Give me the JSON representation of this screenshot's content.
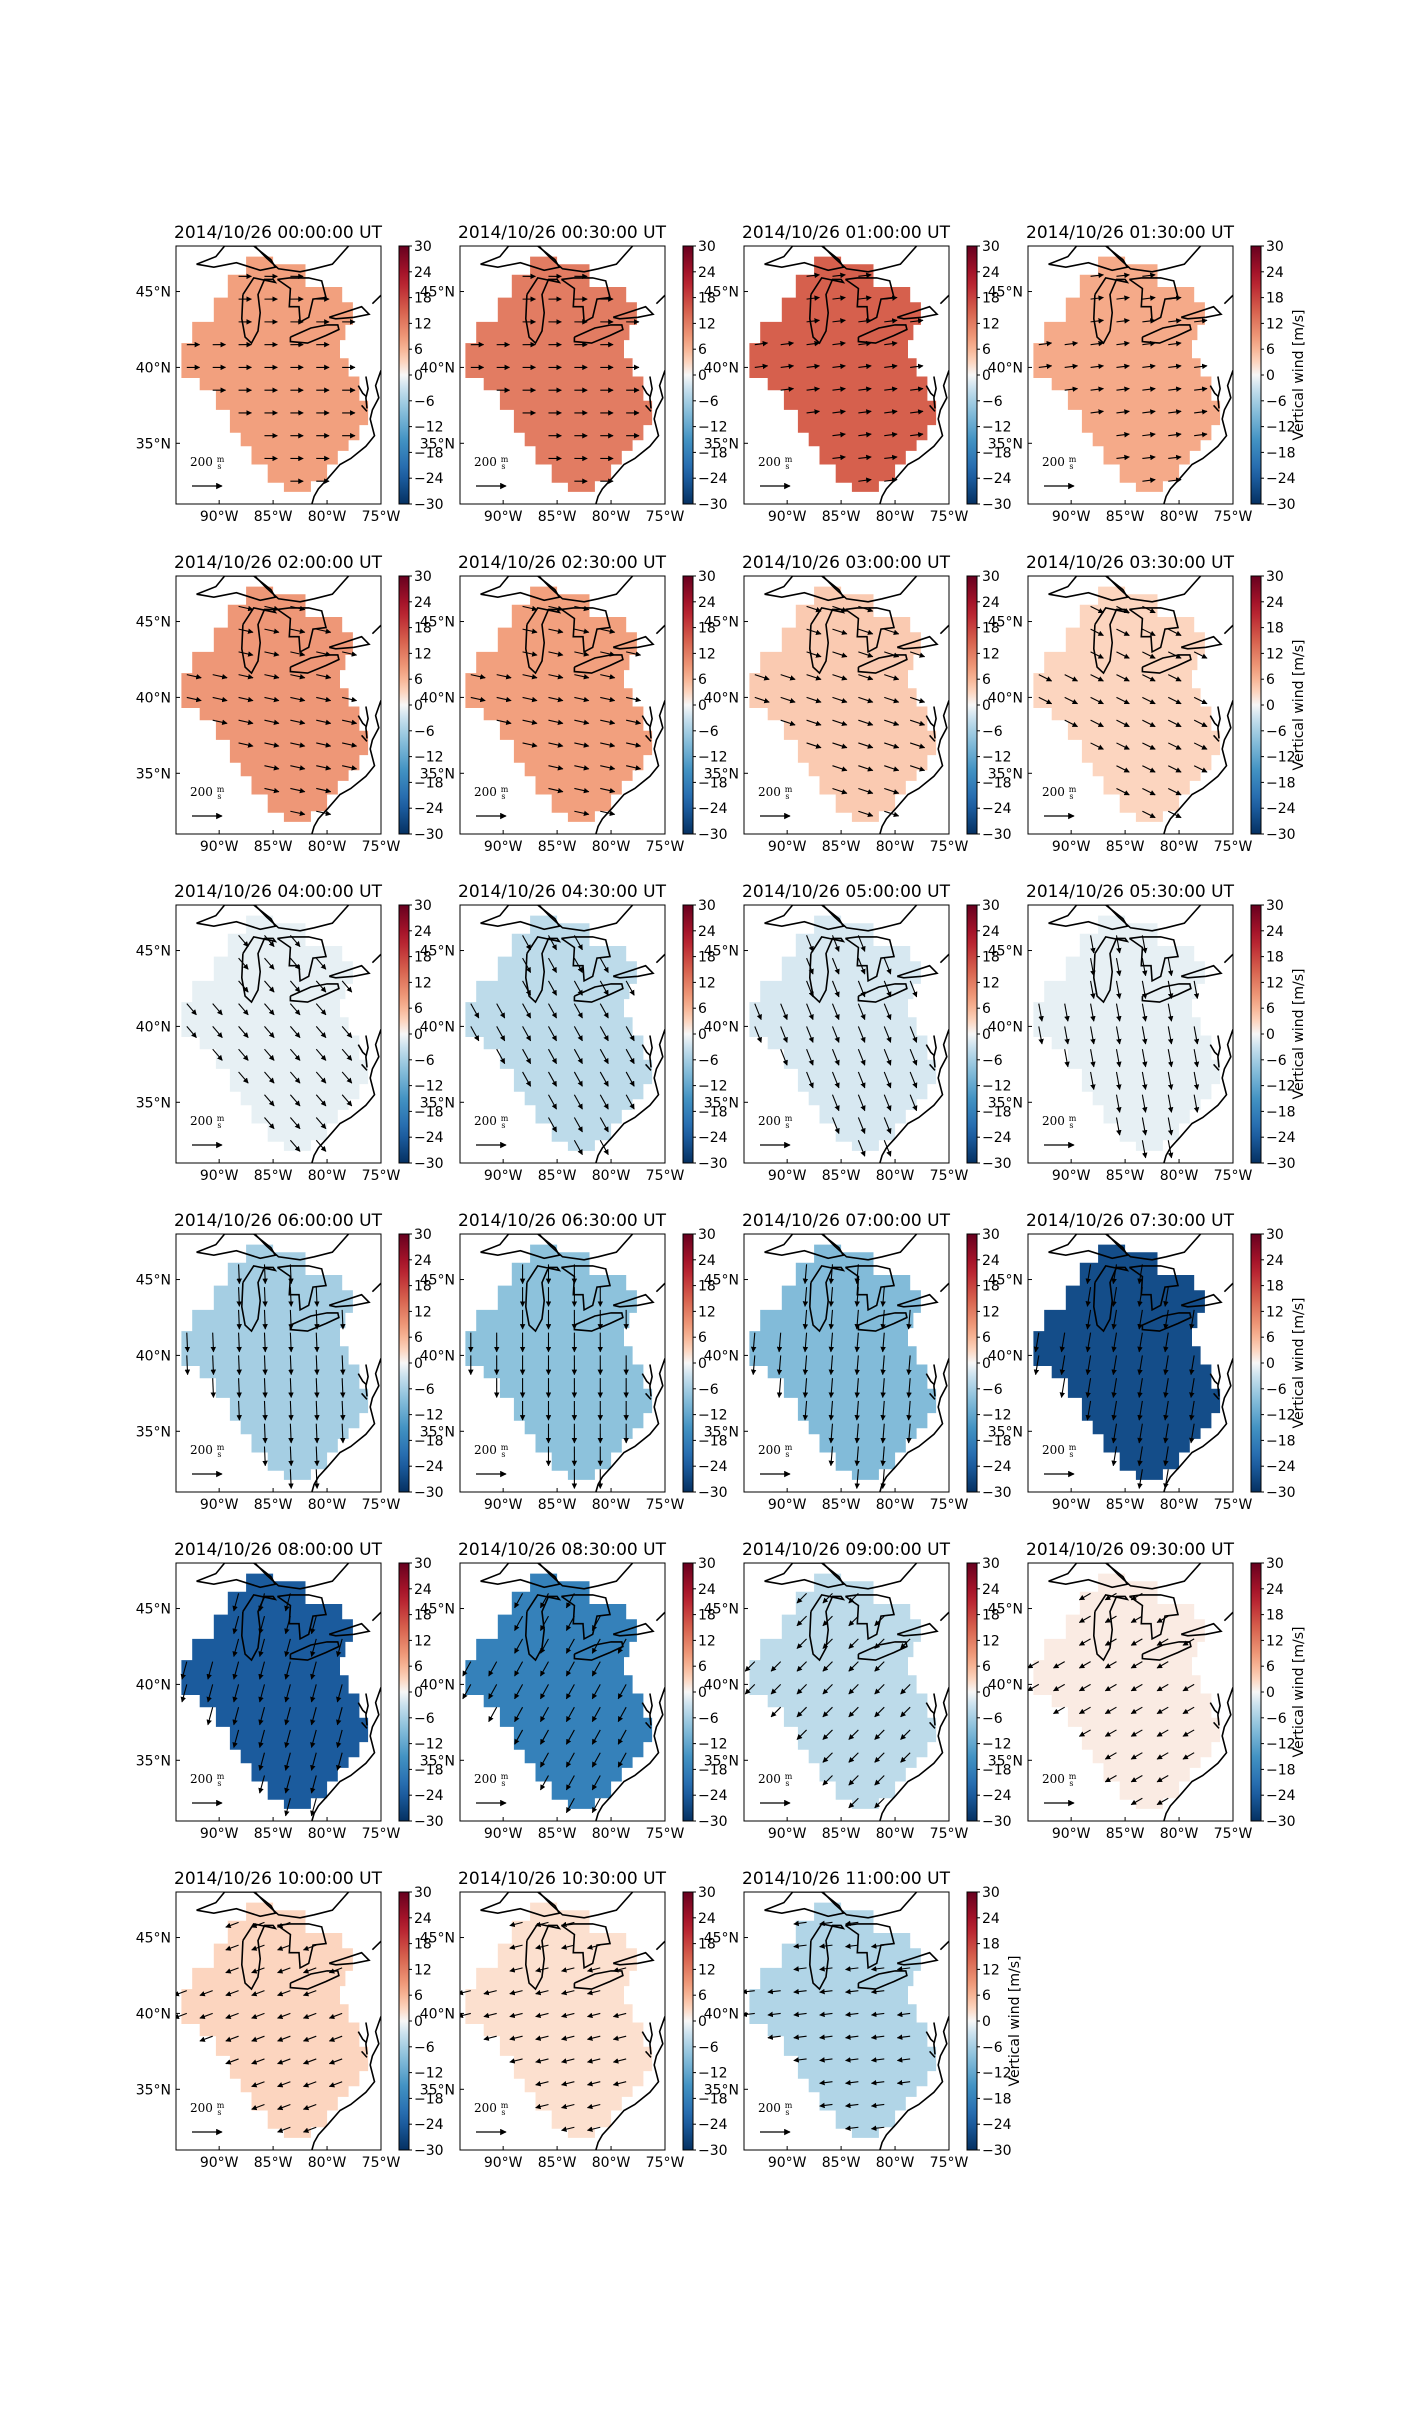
{
  "chart_data": {
    "type": "heatmap",
    "description_fields": {
      "map_extent_lon": [
        -94,
        -75
      ],
      "map_extent_lat": [
        31,
        48
      ],
      "projection": "cylindrical"
    },
    "colormap": "RdBu_r",
    "colorbar": {
      "range": [
        -30,
        30
      ],
      "ticks": [
        "30",
        "24",
        "18",
        "12",
        "6",
        "0",
        "−6",
        "−12",
        "−18",
        "−24",
        "−30"
      ],
      "label": "Vertical wind [m/s]",
      "label_on_panels": [
        3,
        7,
        11,
        15,
        19,
        22
      ]
    },
    "x_ticks": [
      {
        "lon": -90,
        "label": "90°W"
      },
      {
        "lon": -85,
        "label": "85°W"
      },
      {
        "lon": -80,
        "label": "80°W"
      },
      {
        "lon": -75,
        "label": "75°W"
      }
    ],
    "y_ticks": [
      {
        "lat": 45,
        "label": "45°N"
      },
      {
        "lat": 40,
        "label": "40°N"
      },
      {
        "lat": 35,
        "label": "35°N"
      }
    ],
    "reference_arrow_label": "200 m/s",
    "reference_arrow": {
      "number": "200",
      "unit_num": "m",
      "unit_den": "s"
    },
    "panels": [
      {
        "title": "2014/10/26 00:00:00 UT",
        "vertical_wind": 8,
        "wind_u": 80,
        "wind_v": 0
      },
      {
        "title": "2014/10/26 00:30:00 UT",
        "vertical_wind": 12,
        "wind_u": 80,
        "wind_v": 0
      },
      {
        "title": "2014/10/26 01:00:00 UT",
        "vertical_wind": 15,
        "wind_u": 80,
        "wind_v": 10
      },
      {
        "title": "2014/10/26 01:30:00 UT",
        "vertical_wind": 7,
        "wind_u": 80,
        "wind_v": 10
      },
      {
        "title": "2014/10/26 02:00:00 UT",
        "vertical_wind": 9,
        "wind_u": 90,
        "wind_v": -20
      },
      {
        "title": "2014/10/26 02:30:00 UT",
        "vertical_wind": 8,
        "wind_u": 90,
        "wind_v": -20
      },
      {
        "title": "2014/10/26 03:00:00 UT",
        "vertical_wind": 4,
        "wind_u": 90,
        "wind_v": -30
      },
      {
        "title": "2014/10/26 03:30:00 UT",
        "vertical_wind": 3,
        "wind_u": 80,
        "wind_v": -40
      },
      {
        "title": "2014/10/26 04:00:00 UT",
        "vertical_wind": -1,
        "wind_u": 60,
        "wind_v": -70
      },
      {
        "title": "2014/10/26 04:30:00 UT",
        "vertical_wind": -4,
        "wind_u": 50,
        "wind_v": -90
      },
      {
        "title": "2014/10/26 05:00:00 UT",
        "vertical_wind": -2,
        "wind_u": 40,
        "wind_v": -100
      },
      {
        "title": "2014/10/26 05:30:00 UT",
        "vertical_wind": -1,
        "wind_u": 20,
        "wind_v": -110
      },
      {
        "title": "2014/10/26 06:00:00 UT",
        "vertical_wind": -6,
        "wind_u": 5,
        "wind_v": -120
      },
      {
        "title": "2014/10/26 06:30:00 UT",
        "vertical_wind": -8,
        "wind_u": 0,
        "wind_v": -120
      },
      {
        "title": "2014/10/26 07:00:00 UT",
        "vertical_wind": -9,
        "wind_u": -10,
        "wind_v": -120
      },
      {
        "title": "2014/10/26 07:30:00 UT",
        "vertical_wind": -26,
        "wind_u": -20,
        "wind_v": -120
      },
      {
        "title": "2014/10/26 08:00:00 UT",
        "vertical_wind": -24,
        "wind_u": -30,
        "wind_v": -110
      },
      {
        "title": "2014/10/26 08:30:00 UT",
        "vertical_wind": -18,
        "wind_u": -50,
        "wind_v": -90
      },
      {
        "title": "2014/10/26 09:00:00 UT",
        "vertical_wind": -4,
        "wind_u": -60,
        "wind_v": -60
      },
      {
        "title": "2014/10/26 09:30:00 UT",
        "vertical_wind": 1,
        "wind_u": -70,
        "wind_v": -40
      },
      {
        "title": "2014/10/26 10:00:00 UT",
        "vertical_wind": 3,
        "wind_u": -80,
        "wind_v": -30
      },
      {
        "title": "2014/10/26 10:30:00 UT",
        "vertical_wind": 2,
        "wind_u": -80,
        "wind_v": -20
      },
      {
        "title": "2014/10/26 11:00:00 UT",
        "vertical_wind": -5,
        "wind_u": -80,
        "wind_v": -10
      }
    ]
  }
}
